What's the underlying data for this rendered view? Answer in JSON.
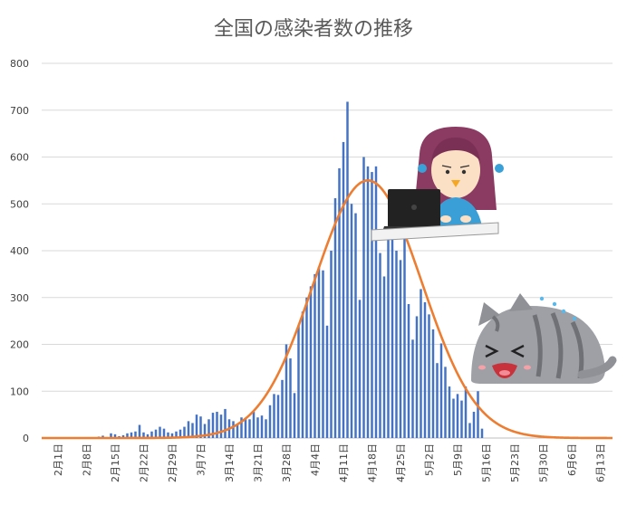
{
  "colors": {
    "bars": "#4472c4",
    "curve": "#ed7d31",
    "grid": "#d9d9d9",
    "text": "#595959"
  },
  "chart_data": {
    "type": "bar",
    "title": "全国の感染者数の推移",
    "xlabel": "",
    "ylabel": "",
    "ylim": [
      0,
      800
    ],
    "yticks": [
      0,
      100,
      200,
      300,
      400,
      500,
      600,
      700,
      800
    ],
    "grid": true,
    "x_start": "2020-01-28",
    "x_end": "2020-06-16",
    "xticks": [
      {
        "date": "2020-02-01",
        "label": "2月1日"
      },
      {
        "date": "2020-02-08",
        "label": "2月8日"
      },
      {
        "date": "2020-02-15",
        "label": "2月15日"
      },
      {
        "date": "2020-02-22",
        "label": "2月22日"
      },
      {
        "date": "2020-02-29",
        "label": "2月29日"
      },
      {
        "date": "2020-03-07",
        "label": "3月7日"
      },
      {
        "date": "2020-03-14",
        "label": "3月14日"
      },
      {
        "date": "2020-03-21",
        "label": "3月21日"
      },
      {
        "date": "2020-03-28",
        "label": "3月28日"
      },
      {
        "date": "2020-04-04",
        "label": "4月4日"
      },
      {
        "date": "2020-04-11",
        "label": "4月11日"
      },
      {
        "date": "2020-04-18",
        "label": "4月18日"
      },
      {
        "date": "2020-04-25",
        "label": "4月25日"
      },
      {
        "date": "2020-05-02",
        "label": "5月2日"
      },
      {
        "date": "2020-05-09",
        "label": "5月9日"
      },
      {
        "date": "2020-05-16",
        "label": "5月16日"
      },
      {
        "date": "2020-05-23",
        "label": "5月23日"
      },
      {
        "date": "2020-05-30",
        "label": "5月30日"
      },
      {
        "date": "2020-06-06",
        "label": "6月6日"
      },
      {
        "date": "2020-06-13",
        "label": "6月13日"
      }
    ],
    "series": [
      {
        "type": "bar",
        "dates": [
          "2020-02-11",
          "2020-02-12",
          "2020-02-13",
          "2020-02-14",
          "2020-02-15",
          "2020-02-16",
          "2020-02-17",
          "2020-02-18",
          "2020-02-19",
          "2020-02-20",
          "2020-02-21",
          "2020-02-22",
          "2020-02-23",
          "2020-02-24",
          "2020-02-25",
          "2020-02-26",
          "2020-02-27",
          "2020-02-28",
          "2020-02-29",
          "2020-03-01",
          "2020-03-02",
          "2020-03-03",
          "2020-03-04",
          "2020-03-05",
          "2020-03-06",
          "2020-03-07",
          "2020-03-08",
          "2020-03-09",
          "2020-03-10",
          "2020-03-11",
          "2020-03-12",
          "2020-03-13",
          "2020-03-14",
          "2020-03-15",
          "2020-03-16",
          "2020-03-17",
          "2020-03-18",
          "2020-03-19",
          "2020-03-20",
          "2020-03-21",
          "2020-03-22",
          "2020-03-23",
          "2020-03-24",
          "2020-03-25",
          "2020-03-26",
          "2020-03-27",
          "2020-03-28",
          "2020-03-29",
          "2020-03-30",
          "2020-03-31",
          "2020-04-01",
          "2020-04-02",
          "2020-04-03",
          "2020-04-04",
          "2020-04-05",
          "2020-04-06",
          "2020-04-07",
          "2020-04-08",
          "2020-04-09",
          "2020-04-10",
          "2020-04-11",
          "2020-04-12",
          "2020-04-13",
          "2020-04-14",
          "2020-04-15",
          "2020-04-16",
          "2020-04-17",
          "2020-04-18",
          "2020-04-19",
          "2020-04-20",
          "2020-04-21",
          "2020-04-22",
          "2020-04-23",
          "2020-04-24",
          "2020-04-25",
          "2020-04-26",
          "2020-04-27",
          "2020-04-28",
          "2020-04-29",
          "2020-04-30",
          "2020-05-01",
          "2020-05-02",
          "2020-05-03",
          "2020-05-04",
          "2020-05-05",
          "2020-05-06",
          "2020-05-07",
          "2020-05-08",
          "2020-05-09",
          "2020-05-10",
          "2020-05-11",
          "2020-05-12",
          "2020-05-13",
          "2020-05-14",
          "2020-05-15"
        ],
        "values": [
          3,
          5,
          2,
          10,
          8,
          4,
          6,
          10,
          12,
          14,
          28,
          12,
          8,
          14,
          18,
          24,
          20,
          12,
          10,
          14,
          18,
          24,
          36,
          32,
          50,
          46,
          30,
          40,
          54,
          56,
          50,
          62,
          40,
          36,
          30,
          44,
          42,
          40,
          56,
          44,
          48,
          40,
          70,
          94,
          92,
          124,
          200,
          170,
          96,
          240,
          270,
          300,
          324,
          350,
          365,
          358,
          240,
          400,
          512,
          576,
          632,
          718,
          500,
          480,
          295,
          600,
          580,
          568,
          580,
          395,
          345,
          430,
          466,
          400,
          380,
          448,
          286,
          210,
          260,
          318,
          290,
          264,
          232,
          160,
          202,
          152,
          110,
          84,
          94,
          80,
          110,
          32,
          56,
          100,
          20
        ]
      },
      {
        "type": "line",
        "curve": "gaussian",
        "peak_date": "2020-04-17",
        "peak_value": 550,
        "width_days": 13.2
      }
    ]
  }
}
